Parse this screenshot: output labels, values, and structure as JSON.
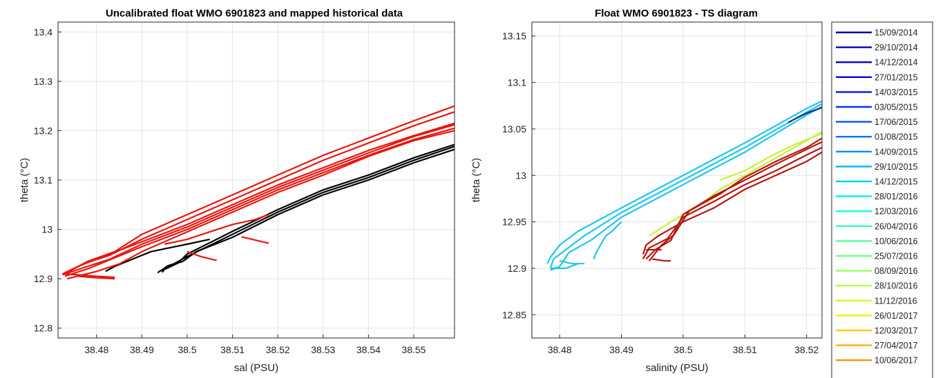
{
  "chart_data": [
    {
      "type": "line",
      "title": "Uncalibrated float WMO 6901823 and mapped historical data",
      "xlabel": "sal (PSU)",
      "ylabel": "theta (°C)",
      "xlim": [
        38.4715,
        38.559
      ],
      "ylim": [
        12.78,
        13.42
      ],
      "xticks": [
        38.48,
        38.49,
        38.5,
        38.51,
        38.52,
        38.53,
        38.54,
        38.55
      ],
      "xtick_labels": [
        "38.48",
        "38.49",
        "38.5",
        "38.51",
        "38.52",
        "38.53",
        "38.54",
        "38.55"
      ],
      "yticks": [
        12.8,
        12.9,
        13.0,
        13.1,
        13.2,
        13.3,
        13.4
      ],
      "ytick_labels": [
        "12.8",
        "12.9",
        "13",
        "13.1",
        "13.2",
        "13.3",
        "13.4"
      ],
      "grid": true,
      "series": [
        {
          "color": "#000000",
          "profiles": [
            {
              "x": [
                38.494,
                38.4945,
                38.4955,
                38.497,
                38.5,
                38.51,
                38.52,
                38.53,
                38.54,
                38.55,
                38.559
              ],
              "y": [
                12.915,
                12.918,
                12.925,
                12.93,
                12.945,
                12.99,
                13.035,
                13.075,
                13.105,
                13.14,
                13.168
              ]
            },
            {
              "x": [
                38.4935,
                38.494,
                38.4955,
                38.498,
                38.5,
                38.51,
                38.52,
                38.53,
                38.54,
                38.55,
                38.559
              ],
              "y": [
                12.912,
                12.916,
                12.921,
                12.932,
                12.95,
                12.996,
                13.04,
                13.08,
                13.11,
                13.145,
                13.172
              ]
            },
            {
              "x": [
                38.4945,
                38.495,
                38.496,
                38.499,
                38.502,
                38.51,
                38.52,
                38.53,
                38.54,
                38.55,
                38.559
              ],
              "y": [
                12.913,
                12.92,
                12.927,
                12.935,
                12.955,
                12.984,
                13.03,
                13.07,
                13.1,
                13.135,
                13.162
              ]
            },
            {
              "x": [
                38.482,
                38.484,
                38.488,
                38.492,
                38.5,
                38.505
              ],
              "y": [
                12.915,
                12.925,
                12.94,
                12.955,
                12.97,
                12.98
              ]
            }
          ]
        },
        {
          "color": "#e8150e",
          "profiles": [
            {
              "x": [
                38.4725,
                38.476,
                38.48,
                38.49,
                38.5,
                38.51,
                38.52,
                38.53,
                38.54,
                38.55,
                38.559
              ],
              "y": [
                12.91,
                12.925,
                12.94,
                12.975,
                13.01,
                13.05,
                13.09,
                13.125,
                13.16,
                13.19,
                13.215
              ]
            },
            {
              "x": [
                38.473,
                38.478,
                38.482,
                38.49,
                38.5,
                38.51,
                38.52,
                38.53,
                38.54,
                38.55,
                38.559
              ],
              "y": [
                12.905,
                12.92,
                12.935,
                12.965,
                13.0,
                13.04,
                13.08,
                13.115,
                13.15,
                13.182,
                13.205
              ]
            },
            {
              "x": [
                38.473,
                38.477,
                38.483,
                38.49,
                38.5,
                38.51,
                38.52,
                38.53,
                38.54,
                38.55,
                38.559
              ],
              "y": [
                12.912,
                12.93,
                12.948,
                12.98,
                13.02,
                13.06,
                13.1,
                13.14,
                13.175,
                13.21,
                13.238
              ]
            },
            {
              "x": [
                38.4735,
                38.48,
                38.485,
                38.49,
                38.5,
                38.51,
                38.52,
                38.53,
                38.54,
                38.55,
                38.559
              ],
              "y": [
                12.9,
                12.915,
                12.93,
                12.955,
                12.995,
                13.035,
                13.075,
                13.11,
                13.148,
                13.18,
                13.2
              ]
            },
            {
              "x": [
                38.474,
                38.478,
                38.484,
                38.49,
                38.5,
                38.51,
                38.52,
                38.53,
                38.54,
                38.55,
                38.559
              ],
              "y": [
                12.915,
                12.935,
                12.955,
                12.99,
                13.03,
                13.07,
                13.11,
                13.15,
                13.185,
                13.22,
                13.25
              ]
            },
            {
              "x": [
                38.4725,
                38.477,
                38.483,
                38.49,
                38.5,
                38.51,
                38.52,
                38.53,
                38.54,
                38.55,
                38.559
              ],
              "y": [
                12.908,
                12.922,
                12.94,
                12.97,
                13.005,
                13.045,
                13.085,
                13.12,
                13.155,
                13.188,
                13.212
              ]
            },
            {
              "x": [
                38.476,
                38.48,
                38.484
              ],
              "y": [
                12.905,
                12.902,
                12.9
              ]
            },
            {
              "x": [
                38.4725,
                38.476,
                38.48,
                38.484
              ],
              "y": [
                12.91,
                12.908,
                12.905,
                12.903
              ]
            },
            {
              "x": [
                38.495,
                38.5,
                38.505,
                38.51,
                38.515,
                38.518
              ],
              "y": [
                12.97,
                12.98,
                12.995,
                13.01,
                13.02,
                13.03
              ]
            },
            {
              "x": [
                38.512,
                38.518
              ],
              "y": [
                12.985,
                12.972
              ]
            },
            {
              "x": [
                38.5,
                38.503,
                38.5065
              ],
              "y": [
                12.955,
                12.945,
                12.937
              ]
            }
          ]
        }
      ]
    },
    {
      "type": "line",
      "title": "Float WMO 6901823 - TS diagram",
      "xlabel": "salinity (PSU)",
      "ylabel": "theta (°C)",
      "xlim": [
        38.4755,
        38.5225
      ],
      "ylim": [
        12.825,
        13.165
      ],
      "xticks": [
        38.48,
        38.49,
        38.5,
        38.51,
        38.52
      ],
      "xtick_labels": [
        "38.48",
        "38.49",
        "38.5",
        "38.51",
        "38.52"
      ],
      "yticks": [
        12.85,
        12.9,
        12.95,
        13.0,
        13.05,
        13.1,
        13.15
      ],
      "ytick_labels": [
        "12.85",
        "12.9",
        "12.95",
        "13",
        "13.05",
        "13.1",
        "13.15"
      ],
      "grid": true,
      "legend": {
        "placement": "outside-right",
        "entries": [
          {
            "label": "15/09/2014",
            "color": "#00008f"
          },
          {
            "label": "29/10/2014",
            "color": "#0000b0"
          },
          {
            "label": "14/12/2014",
            "color": "#0000d0"
          },
          {
            "label": "27/01/2015",
            "color": "#0000f0"
          },
          {
            "label": "14/03/2015",
            "color": "#0010ff"
          },
          {
            "label": "03/05/2015",
            "color": "#0030ff"
          },
          {
            "label": "17/06/2015",
            "color": "#0050ff"
          },
          {
            "label": "01/08/2015",
            "color": "#0070ff"
          },
          {
            "label": "14/09/2015",
            "color": "#0090ff"
          },
          {
            "label": "29/10/2015",
            "color": "#00b0ff"
          },
          {
            "label": "14/12/2015",
            "color": "#00d0ff"
          },
          {
            "label": "28/01/2016",
            "color": "#00eef0"
          },
          {
            "label": "12/03/2016",
            "color": "#10ffe0"
          },
          {
            "label": "26/04/2016",
            "color": "#30ffc0"
          },
          {
            "label": "10/06/2016",
            "color": "#50ffa0"
          },
          {
            "label": "25/07/2016",
            "color": "#70ff80"
          },
          {
            "label": "08/09/2016",
            "color": "#90ff60"
          },
          {
            "label": "28/10/2016",
            "color": "#b0ff40"
          },
          {
            "label": "11/12/2016",
            "color": "#d0ff20"
          },
          {
            "label": "26/01/2017",
            "color": "#f0f000"
          },
          {
            "label": "12/03/2017",
            "color": "#ffd000"
          },
          {
            "label": "27/04/2017",
            "color": "#ffb000"
          },
          {
            "label": "10/06/2017",
            "color": "#ff9000"
          }
        ]
      },
      "series": [
        {
          "color": "#1ec6ea",
          "profiles": [
            {
              "x": [
                38.4785,
                38.479,
                38.481,
                38.484,
                38.49,
                38.5,
                38.51,
                38.52,
                38.5225
              ],
              "y": [
                12.9,
                12.91,
                12.92,
                12.935,
                12.96,
                12.995,
                13.03,
                13.068,
                13.077
              ]
            },
            {
              "x": [
                38.478,
                38.4785,
                38.48,
                38.483,
                38.49,
                38.5,
                38.51,
                38.52,
                38.5225
              ],
              "y": [
                12.905,
                12.912,
                12.925,
                12.94,
                12.965,
                13.0,
                13.035,
                13.072,
                13.08
              ]
            },
            {
              "x": [
                38.4785,
                38.48,
                38.4815,
                38.485,
                38.49,
                38.5,
                38.51,
                38.52,
                38.5225
              ],
              "y": [
                12.898,
                12.902,
                12.917,
                12.93,
                12.955,
                12.99,
                13.025,
                13.065,
                13.074
              ]
            },
            {
              "x": [
                38.4785,
                38.481,
                38.483
              ],
              "y": [
                12.9,
                12.9,
                12.905
              ]
            },
            {
              "x": [
                38.4855,
                38.486,
                38.4875,
                38.4885,
                38.49
              ],
              "y": [
                12.91,
                12.918,
                12.935,
                12.94,
                12.95
              ]
            },
            {
              "x": [
                38.48,
                38.482,
                38.484
              ],
              "y": [
                12.908,
                12.905,
                12.905
              ]
            }
          ]
        },
        {
          "color": "#152b8a",
          "profiles": [
            {
              "x": [
                38.517,
                38.52,
                38.5225
              ],
              "y": [
                13.057,
                13.067,
                13.073
              ]
            }
          ]
        },
        {
          "color": "#c8f03a",
          "profiles": [
            {
              "x": [
                38.4945,
                38.498,
                38.502,
                38.506,
                38.51,
                38.514,
                38.518,
                38.5225
              ],
              "y": [
                12.935,
                12.95,
                12.965,
                12.985,
                13.0,
                13.015,
                13.03,
                13.047
              ]
            },
            {
              "x": [
                38.506,
                38.51,
                38.514,
                38.518,
                38.5225
              ],
              "y": [
                12.995,
                13.005,
                13.02,
                13.033,
                13.045
              ]
            }
          ]
        },
        {
          "color": "#b5160f",
          "profiles": [
            {
              "x": [
                38.4935,
                38.494,
                38.496,
                38.5,
                38.505,
                38.51,
                38.515,
                38.52,
                38.5225
              ],
              "y": [
                12.915,
                12.925,
                12.935,
                12.95,
                12.965,
                12.985,
                13.0,
                13.015,
                13.025
              ]
            },
            {
              "x": [
                38.4935,
                38.4945,
                38.4975,
                38.5,
                38.505,
                38.51,
                38.515,
                38.52,
                38.5225
              ],
              "y": [
                12.91,
                12.922,
                12.932,
                12.955,
                12.972,
                12.99,
                13.005,
                13.022,
                13.03
              ]
            },
            {
              "x": [
                38.494,
                38.4955,
                38.498,
                38.5,
                38.505,
                38.51,
                38.515,
                38.52,
                38.5225
              ],
              "y": [
                12.91,
                12.92,
                12.93,
                12.958,
                12.978,
                12.995,
                13.012,
                13.028,
                13.036
              ]
            },
            {
              "x": [
                38.4945,
                38.4965,
                38.4985,
                38.501,
                38.506,
                38.51,
                38.515,
                38.52,
                38.5225
              ],
              "y": [
                12.908,
                12.925,
                12.936,
                12.962,
                12.98,
                12.998,
                13.015,
                13.03,
                13.04
              ]
            },
            {
              "x": [
                38.495,
                38.497,
                38.498
              ],
              "y": [
                12.91,
                12.908,
                12.908
              ]
            },
            {
              "x": [
                38.494,
                38.4965
              ],
              "y": [
                12.92,
                12.92
              ]
            }
          ]
        }
      ]
    }
  ]
}
